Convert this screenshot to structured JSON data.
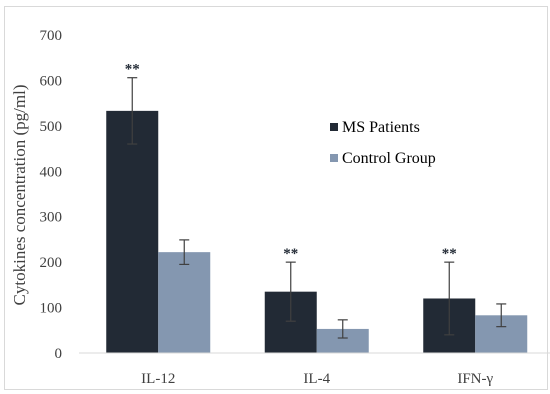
{
  "chart_data": {
    "type": "bar",
    "categories": [
      "IL-12",
      "IL-4",
      "IFN-γ"
    ],
    "series": [
      {
        "name": "MS Patients",
        "color": "#222a35",
        "values": [
          533,
          135,
          120
        ],
        "errors": [
          73,
          65,
          80
        ],
        "annotations": [
          "**",
          "**",
          "**"
        ]
      },
      {
        "name": "Control Group",
        "color": "#8497b0",
        "values": [
          222,
          53,
          83
        ],
        "errors": [
          27,
          20,
          25
        ],
        "annotations": [
          "",
          "",
          ""
        ]
      }
    ],
    "title": "",
    "xlabel": "",
    "ylabel": "Cytokines concentration (pg/ml)",
    "ylim": [
      0,
      700
    ],
    "yticks": [
      "0",
      "100",
      "200",
      "300",
      "400",
      "500",
      "600",
      "700"
    ],
    "grid": false,
    "legend": "right"
  }
}
